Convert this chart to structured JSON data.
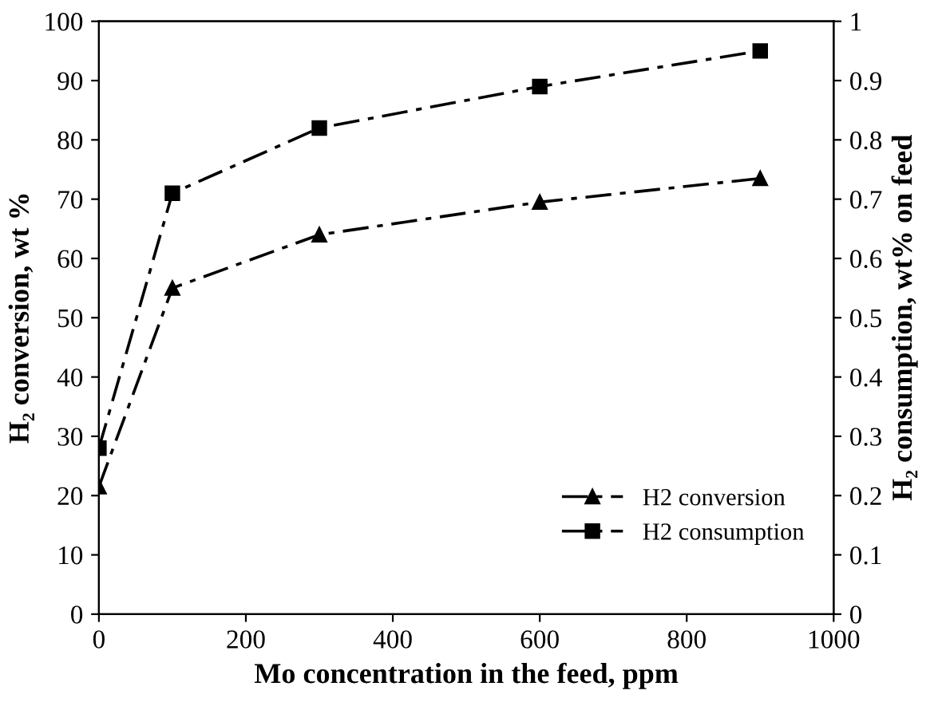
{
  "chart_data": {
    "type": "line",
    "xlabel": "Mo concentration in the feed, ppm",
    "ylabel": "H₂ conversion, wt %",
    "y2label": "H₂ consumption, wt% on feed",
    "x": [
      0,
      100,
      300,
      600,
      900
    ],
    "series": [
      {
        "name": "H2 conversion",
        "color": "#000000",
        "values": [
          21.5,
          55,
          64,
          69.5,
          73.5
        ],
        "marker": "triangle"
      },
      {
        "name": "H2 consumption",
        "color": "#000000",
        "values": [
          0.28,
          0.71,
          0.82,
          0.89,
          0.95
        ],
        "marker": "square",
        "axis": "y2"
      }
    ],
    "xlim": [
      0,
      1000
    ],
    "xticks": [
      0,
      200,
      400,
      600,
      800,
      1000
    ],
    "ylim": [
      0,
      100
    ],
    "yticks": [
      0,
      10,
      20,
      30,
      40,
      50,
      60,
      70,
      80,
      90,
      100
    ],
    "y2lim": [
      0,
      1
    ],
    "y2ticks": [
      0,
      0.1,
      0.2,
      0.3,
      0.4,
      0.5,
      0.6,
      0.7,
      0.8,
      0.9,
      1
    ],
    "line_style": "dashed",
    "grid": false,
    "legend": "bottom right"
  }
}
